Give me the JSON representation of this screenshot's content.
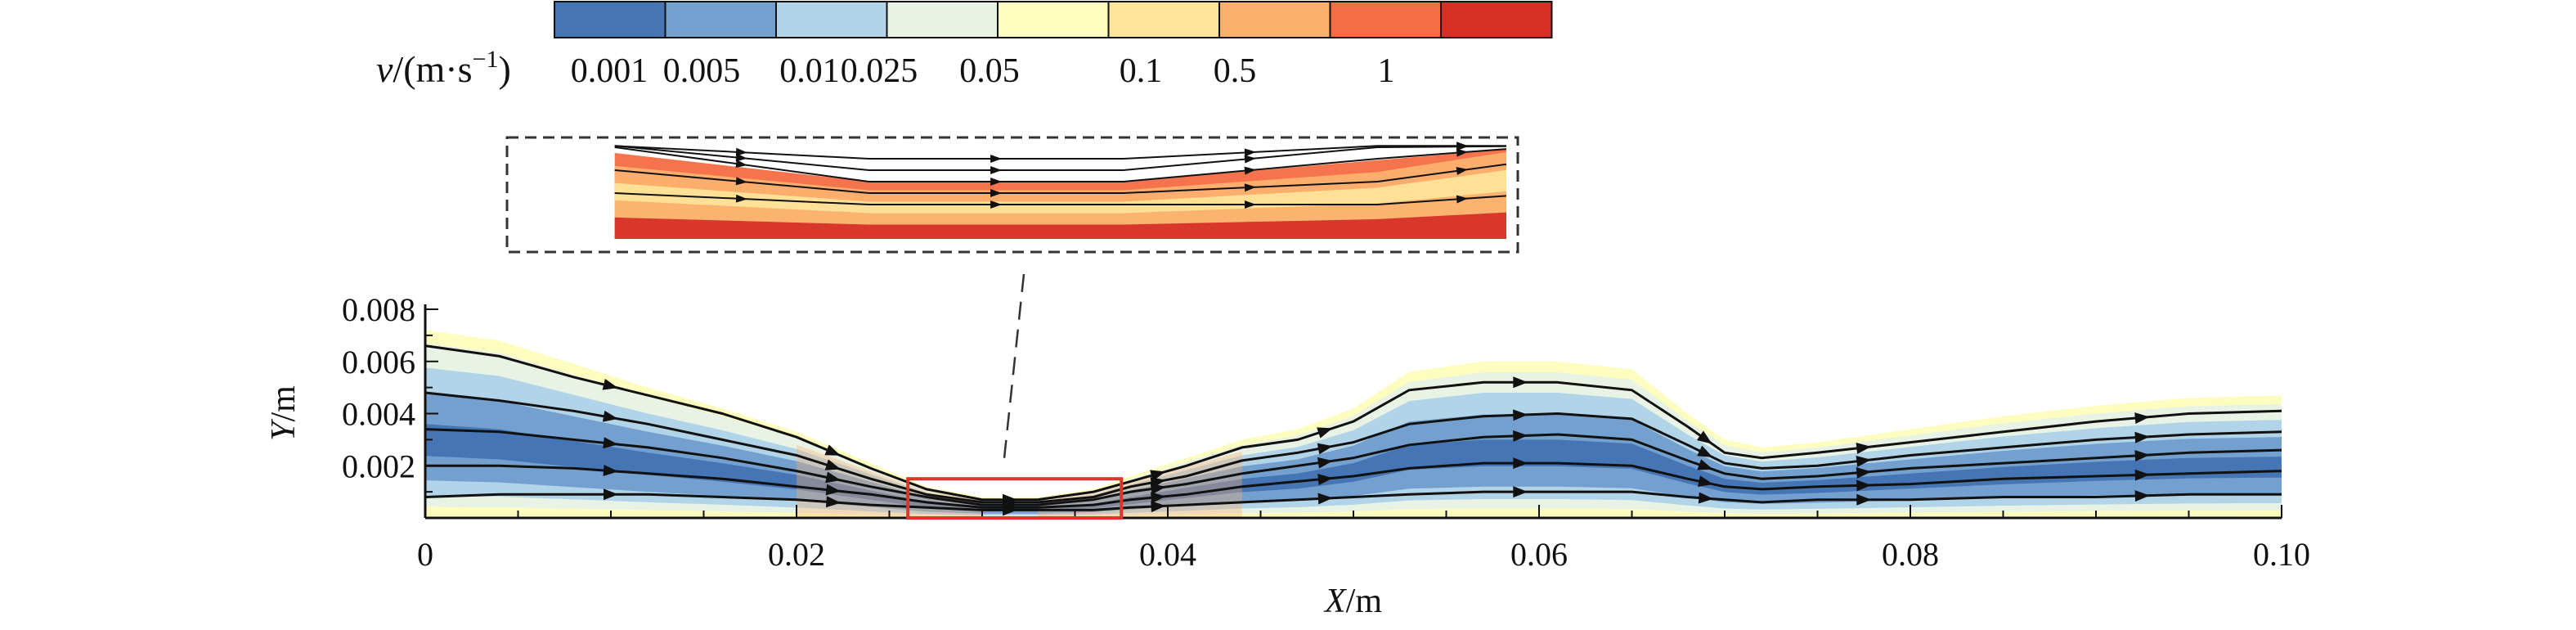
{
  "chart_data": {
    "type": "contour-streamline",
    "legend": {
      "title_var": "v",
      "title_unit": "/(m·s",
      "title_exp": "−1",
      "title_close": ")",
      "levels": [
        "0.001",
        "0.005",
        "0.01",
        "0.025",
        "0.05",
        "0.1",
        "0.5",
        "1"
      ],
      "colors": [
        "#4575b4",
        "#74a0cf",
        "#b2d4e8",
        "#e8f3e6",
        "#fefdc0",
        "#fee39a",
        "#fdb06e",
        "#f46d43",
        "#d73027"
      ]
    },
    "x_axis": {
      "var": "X",
      "unit": "/m",
      "range": [
        0,
        0.1
      ],
      "ticks": [
        0,
        0.02,
        0.04,
        0.06,
        0.08,
        0.1
      ],
      "tick_labels": [
        "0",
        "0.02",
        "0.04",
        "0.06",
        "0.08",
        "0.10"
      ]
    },
    "y_axis": {
      "var": "Y",
      "unit": "/m",
      "range": [
        0,
        0.008
      ],
      "ticks": [
        0.002,
        0.004,
        0.006,
        0.008
      ],
      "tick_labels": [
        "0.002",
        "0.004",
        "0.006",
        "0.008"
      ]
    },
    "top_boundary": {
      "x": [
        0,
        0.004,
        0.008,
        0.012,
        0.016,
        0.02,
        0.024,
        0.027,
        0.03,
        0.033,
        0.036,
        0.038,
        0.041,
        0.044,
        0.047,
        0.05,
        0.053,
        0.057,
        0.061,
        0.065,
        0.068,
        0.07,
        0.072,
        0.075,
        0.08,
        0.085,
        0.09,
        0.095,
        0.1
      ],
      "y": [
        0.0072,
        0.0068,
        0.0059,
        0.005,
        0.0042,
        0.0033,
        0.0021,
        0.0012,
        0.0008,
        0.0008,
        0.0011,
        0.0016,
        0.0023,
        0.003,
        0.0034,
        0.0042,
        0.0056,
        0.006,
        0.006,
        0.0057,
        0.004,
        0.003,
        0.0027,
        0.0029,
        0.0034,
        0.0039,
        0.0043,
        0.0046,
        0.0047
      ]
    },
    "streamlines": [
      {
        "x": [
          0,
          0.004,
          0.008,
          0.012,
          0.016,
          0.02,
          0.024,
          0.027,
          0.03,
          0.033,
          0.036,
          0.038,
          0.041,
          0.044,
          0.047,
          0.05,
          0.053,
          0.057,
          0.061,
          0.065,
          0.068,
          0.07,
          0.072,
          0.075,
          0.08,
          0.085,
          0.09,
          0.095,
          0.1
        ],
        "y": [
          0.0066,
          0.0062,
          0.0054,
          0.0047,
          0.004,
          0.0031,
          0.0019,
          0.0011,
          0.0007,
          0.0007,
          0.001,
          0.0014,
          0.002,
          0.0027,
          0.003,
          0.0037,
          0.0049,
          0.0052,
          0.0052,
          0.0049,
          0.0035,
          0.0025,
          0.0023,
          0.0025,
          0.0029,
          0.0033,
          0.0037,
          0.004,
          0.0041
        ]
      },
      {
        "x": [
          0,
          0.004,
          0.008,
          0.012,
          0.016,
          0.02,
          0.024,
          0.027,
          0.03,
          0.033,
          0.036,
          0.038,
          0.041,
          0.044,
          0.047,
          0.05,
          0.053,
          0.057,
          0.061,
          0.065,
          0.068,
          0.07,
          0.072,
          0.075,
          0.08,
          0.085,
          0.09,
          0.095,
          0.1
        ],
        "y": [
          0.0048,
          0.0045,
          0.0041,
          0.0036,
          0.003,
          0.0024,
          0.0015,
          0.0009,
          0.0006,
          0.0006,
          0.0008,
          0.0012,
          0.0016,
          0.0022,
          0.0025,
          0.0029,
          0.0036,
          0.0039,
          0.004,
          0.0038,
          0.0028,
          0.0021,
          0.0019,
          0.002,
          0.0024,
          0.0027,
          0.003,
          0.0032,
          0.0033
        ]
      },
      {
        "x": [
          0,
          0.004,
          0.008,
          0.012,
          0.016,
          0.02,
          0.024,
          0.027,
          0.03,
          0.033,
          0.036,
          0.038,
          0.041,
          0.044,
          0.047,
          0.05,
          0.053,
          0.057,
          0.061,
          0.065,
          0.068,
          0.07,
          0.072,
          0.075,
          0.08,
          0.085,
          0.09,
          0.095,
          0.1
        ],
        "y": [
          0.0034,
          0.0033,
          0.003,
          0.0027,
          0.0023,
          0.0018,
          0.0012,
          0.0008,
          0.0005,
          0.0005,
          0.0007,
          0.001,
          0.0013,
          0.0017,
          0.002,
          0.0023,
          0.0028,
          0.0031,
          0.0032,
          0.003,
          0.0022,
          0.0017,
          0.0015,
          0.0016,
          0.0019,
          0.0021,
          0.0023,
          0.0025,
          0.0026
        ]
      },
      {
        "x": [
          0,
          0.004,
          0.008,
          0.012,
          0.016,
          0.02,
          0.024,
          0.027,
          0.03,
          0.033,
          0.036,
          0.038,
          0.041,
          0.044,
          0.047,
          0.05,
          0.053,
          0.057,
          0.061,
          0.065,
          0.068,
          0.07,
          0.072,
          0.075,
          0.08,
          0.085,
          0.09,
          0.095,
          0.1
        ],
        "y": [
          0.002,
          0.002,
          0.0019,
          0.0017,
          0.0015,
          0.0012,
          0.0009,
          0.0006,
          0.0004,
          0.0004,
          0.0005,
          0.0007,
          0.0009,
          0.0012,
          0.0014,
          0.0016,
          0.0019,
          0.0021,
          0.0021,
          0.002,
          0.0015,
          0.0012,
          0.0011,
          0.0012,
          0.0013,
          0.0015,
          0.0016,
          0.0017,
          0.0018
        ]
      },
      {
        "x": [
          0,
          0.004,
          0.008,
          0.012,
          0.016,
          0.02,
          0.024,
          0.027,
          0.03,
          0.033,
          0.036,
          0.038,
          0.041,
          0.044,
          0.047,
          0.05,
          0.053,
          0.057,
          0.061,
          0.065,
          0.068,
          0.07,
          0.072,
          0.075,
          0.08,
          0.085,
          0.09,
          0.095,
          0.1
        ],
        "y": [
          0.0008,
          0.0009,
          0.0009,
          0.0009,
          0.0008,
          0.0007,
          0.0005,
          0.0004,
          0.0003,
          0.0003,
          0.0003,
          0.0004,
          0.0005,
          0.0006,
          0.0007,
          0.0008,
          0.0009,
          0.001,
          0.001,
          0.001,
          0.0008,
          0.0007,
          0.0006,
          0.0007,
          0.0007,
          0.0008,
          0.0008,
          0.0009,
          0.0009
        ]
      }
    ],
    "highlight_region": {
      "x": [
        0.026,
        0.0375
      ],
      "y": [
        0,
        0.0015
      ]
    },
    "inset_x_range": [
      0.026,
      0.0375
    ]
  }
}
